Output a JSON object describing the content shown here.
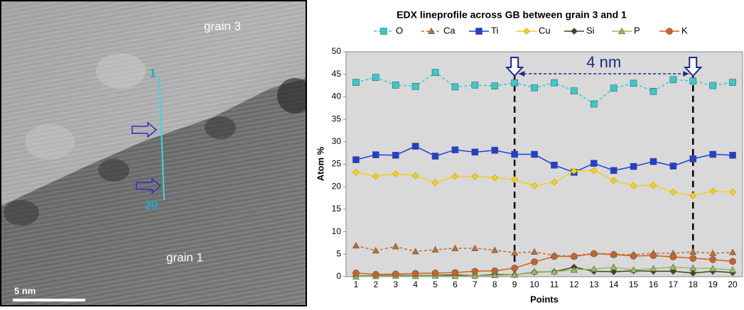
{
  "micrograph": {
    "grain_top": "grain 3",
    "grain_bottom": "grain 1",
    "line_start": "1",
    "line_end": "20",
    "scale_bar": "5 nm"
  },
  "chart_data": {
    "type": "line",
    "title": "EDX lineprofile across GB between grain 3 and 1",
    "x_label": "Points",
    "y_label": "Atom %",
    "annotation": "4 nm",
    "categories": [
      "1",
      "2",
      "3",
      "4",
      "5",
      "6",
      "7",
      "8",
      "9",
      "10",
      "11",
      "12",
      "13",
      "14",
      "15",
      "16",
      "17",
      "18",
      "19",
      "20"
    ],
    "vlines": [
      9,
      18
    ],
    "ylim": [
      0,
      50
    ],
    "yticks": [
      0,
      5,
      10,
      15,
      20,
      25,
      30,
      35,
      40,
      45,
      50
    ],
    "series": [
      {
        "name": "O",
        "color": "#33cccc",
        "marker": "square",
        "line_style": "dashed",
        "values": [
          43.2,
          44.3,
          42.6,
          42.3,
          45.4,
          42.2,
          42.6,
          42.4,
          43.1,
          42.0,
          43.1,
          41.3,
          38.4,
          41.9,
          43.0,
          41.2,
          43.8,
          43.5,
          42.5,
          43.2
        ]
      },
      {
        "name": "Ca",
        "color": "#c0702a",
        "marker": "triangle",
        "line_style": "dashed",
        "values": [
          6.9,
          5.8,
          6.7,
          5.6,
          6.0,
          6.3,
          6.3,
          5.9,
          5.3,
          5.5,
          4.7,
          4.6,
          5.2,
          5.0,
          4.9,
          5.2,
          5.2,
          5.5,
          5.2,
          5.4
        ]
      },
      {
        "name": "Ti",
        "color": "#1f3fd8",
        "marker": "square",
        "line_style": "solid",
        "values": [
          26.0,
          27.1,
          27.0,
          29.0,
          26.8,
          28.2,
          27.7,
          28.1,
          27.2,
          27.2,
          24.8,
          23.2,
          25.2,
          23.6,
          24.5,
          25.6,
          24.6,
          26.2,
          27.2,
          27.0
        ]
      },
      {
        "name": "Cu",
        "color": "#f0d020",
        "marker": "diamond",
        "line_style": "solid",
        "values": [
          23.2,
          22.3,
          22.9,
          22.4,
          20.9,
          22.3,
          22.3,
          22.0,
          21.6,
          20.2,
          21.0,
          23.5,
          23.6,
          21.4,
          20.2,
          20.3,
          18.8,
          18.0,
          19.0,
          18.8
        ]
      },
      {
        "name": "Si",
        "color": "#3a4a1a",
        "marker": "diamond",
        "line_style": "solid",
        "values": [
          0.1,
          0.2,
          0.3,
          0.2,
          0.3,
          0.4,
          0.2,
          0.5,
          0.4,
          1.0,
          1.1,
          2.1,
          1.2,
          1.1,
          1.3,
          1.2,
          1.2,
          0.8,
          1.2,
          0.9
        ]
      },
      {
        "name": "P",
        "color": "#9bbb59",
        "marker": "triangle",
        "line_style": "solid",
        "values": [
          0.0,
          0.1,
          0.2,
          0.1,
          0.2,
          0.1,
          0.2,
          0.3,
          0.4,
          1.1,
          1.1,
          1.5,
          1.7,
          2.1,
          1.5,
          1.8,
          2.1,
          1.9,
          1.8,
          1.5
        ]
      },
      {
        "name": "K",
        "color": "#c86428",
        "marker": "circle",
        "line_style": "solid",
        "values": [
          0.8,
          0.5,
          0.6,
          0.7,
          0.8,
          0.9,
          1.2,
          1.3,
          1.9,
          3.3,
          4.5,
          4.5,
          5.1,
          4.9,
          4.6,
          4.7,
          4.4,
          4.1,
          3.8,
          3.4
        ]
      }
    ]
  }
}
